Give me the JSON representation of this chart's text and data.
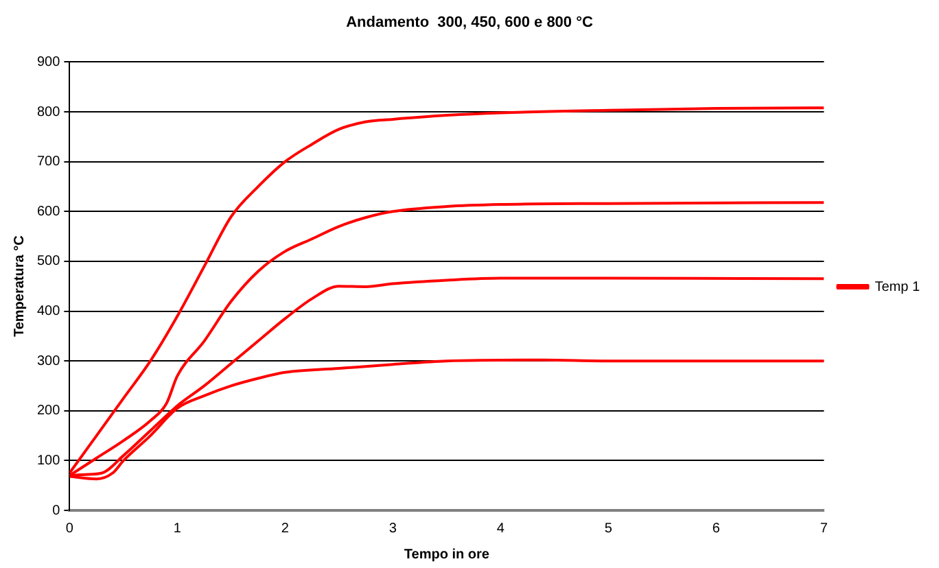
{
  "chart_data": {
    "type": "line",
    "title": "Andamento  300, 450, 600 e 800 °C",
    "xlabel": "Tempo in ore",
    "ylabel": "Temperatura °C",
    "xlim": [
      0,
      7
    ],
    "xticks": [
      0,
      1,
      2,
      3,
      4,
      5,
      6,
      7
    ],
    "ylim": [
      0,
      900
    ],
    "yticks": [
      0,
      100,
      200,
      300,
      400,
      500,
      600,
      700,
      800,
      900
    ],
    "grid": "y",
    "legend": "right",
    "marker": "none",
    "line_style": "solid",
    "series": [
      {
        "name": "Temp 1",
        "color": "#ff0000",
        "x": [
          0,
          0.25,
          0.5,
          0.75,
          1,
          1.25,
          1.5,
          1.75,
          2,
          2.25,
          2.5,
          2.75,
          3,
          3.5,
          4,
          5,
          6,
          7
        ],
        "values": [
          75,
          150,
          225,
          300,
          390,
          490,
          590,
          650,
          700,
          735,
          765,
          780,
          785,
          793,
          798,
          803,
          807,
          808
        ]
      },
      {
        "color": "#ff0000",
        "x": [
          0,
          0.25,
          0.5,
          0.75,
          0.9,
          1,
          1.25,
          1.5,
          1.75,
          2,
          2.25,
          2.5,
          2.75,
          3,
          3.5,
          4,
          5,
          7
        ],
        "values": [
          70,
          105,
          140,
          180,
          215,
          270,
          340,
          420,
          480,
          520,
          545,
          570,
          588,
          600,
          610,
          614,
          616,
          618
        ]
      },
      {
        "color": "#ff0000",
        "x": [
          0,
          0.15,
          0.3,
          0.5,
          0.75,
          1,
          1.25,
          1.5,
          1.75,
          2,
          2.25,
          2.5,
          2.75,
          3,
          3.5,
          4,
          5,
          7
        ],
        "values": [
          70,
          72,
          75,
          110,
          160,
          210,
          250,
          295,
          340,
          385,
          425,
          450,
          449,
          455,
          462,
          466,
          466,
          465
        ]
      },
      {
        "color": "#ff0000",
        "x": [
          0,
          0.25,
          0.4,
          0.5,
          0.75,
          1,
          1.25,
          1.5,
          1.75,
          2,
          2.5,
          3,
          3.5,
          4.4,
          5,
          7
        ],
        "values": [
          68,
          63,
          75,
          100,
          150,
          205,
          230,
          250,
          265,
          277,
          285,
          293,
          300,
          302,
          300,
          300
        ]
      }
    ]
  }
}
